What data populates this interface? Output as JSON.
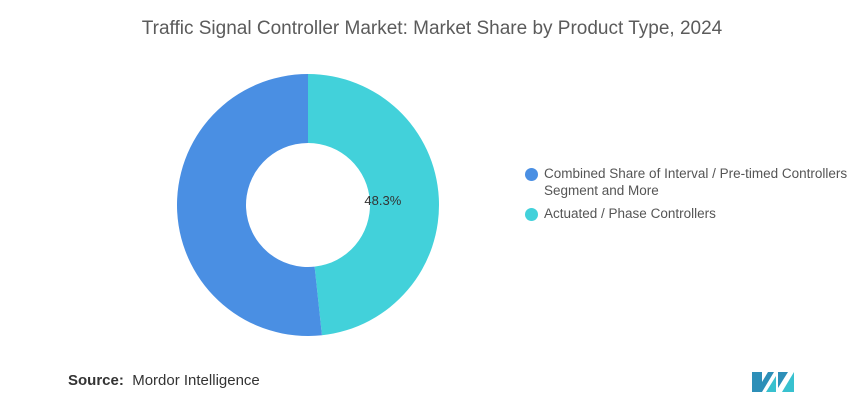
{
  "chart_data": {
    "type": "pie",
    "title": "Traffic Signal Controller Market: Market Share by Product Type, 2024",
    "slices": [
      {
        "label": "Actuated / Phase Controllers",
        "value": 48.3,
        "color": "#42d1da",
        "data_label": "48.3%"
      },
      {
        "label": "Combined Share of Interval / Pre-timed Controllers Segment and More",
        "value": 51.7,
        "color": "#4a8fe3",
        "data_label": ""
      }
    ],
    "legend": {
      "position": "right",
      "items": [
        {
          "label": "Combined Share of Interval / Pre-timed Controllers Segment and More",
          "color": "#4a8fe3"
        },
        {
          "label": "Actuated / Phase Controllers",
          "color": "#42d1da"
        }
      ]
    }
  },
  "source": {
    "prefix": "Source:",
    "name": "Mordor Intelligence"
  },
  "logo": {
    "icon": "mordor-intelligence-logo-icon",
    "color": "#2d8fb8"
  }
}
